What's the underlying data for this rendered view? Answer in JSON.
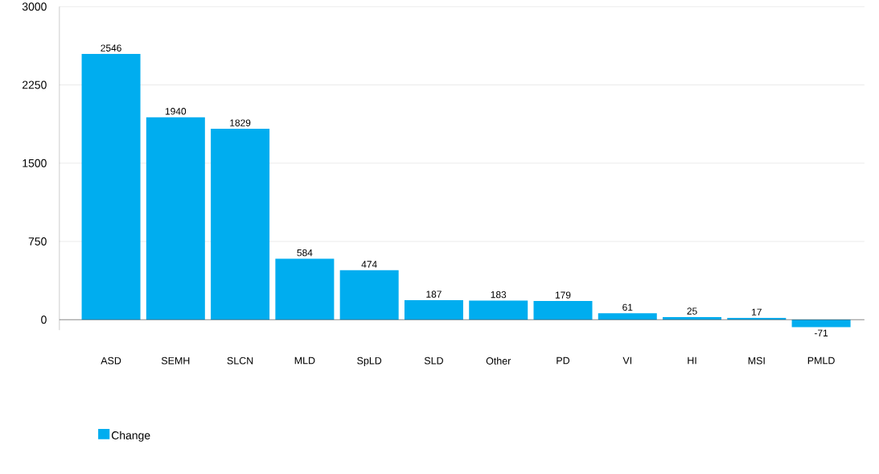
{
  "chart_data": {
    "type": "bar",
    "categories": [
      "ASD",
      "SEMH",
      "SLCN",
      "MLD",
      "SpLD",
      "SLD",
      "Other",
      "PD",
      "VI",
      "HI",
      "MSI",
      "PMLD"
    ],
    "series": [
      {
        "name": "Change",
        "color": "#00adef",
        "values": [
          2546,
          1940,
          1829,
          584,
          474,
          187,
          183,
          179,
          61,
          25,
          17,
          -71
        ]
      }
    ],
    "ylim": [
      -100,
      3000
    ],
    "yticks": [
      0,
      750,
      1500,
      2250,
      3000
    ],
    "grid": "y",
    "legend": "bottom left",
    "data_labels": true
  }
}
